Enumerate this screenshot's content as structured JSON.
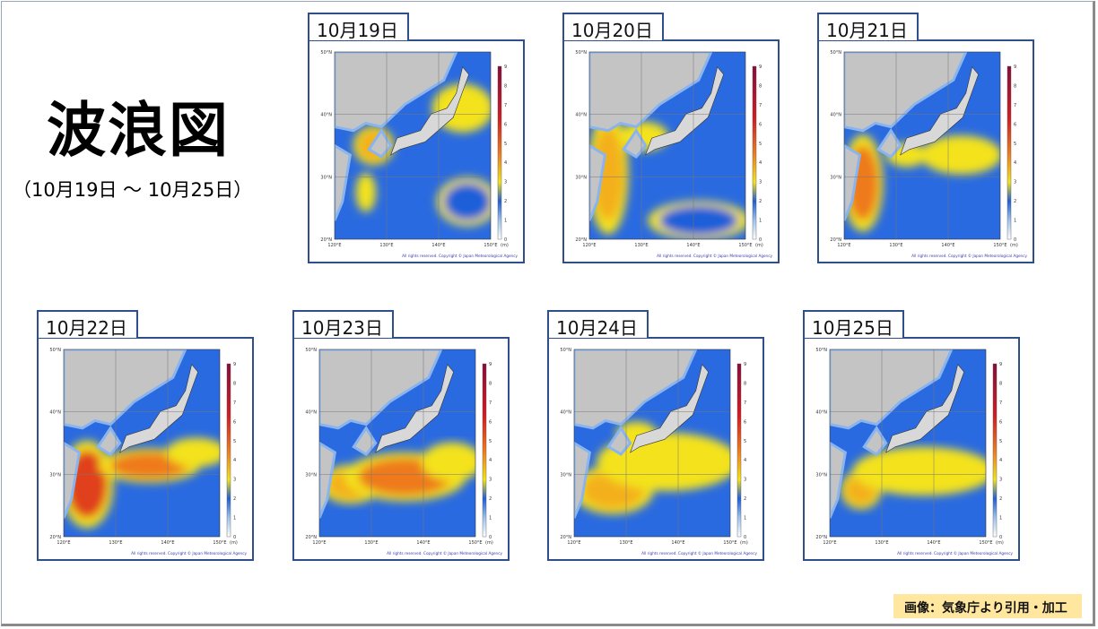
{
  "title": "波浪図",
  "date_range": "（10月19日 ～ 10月25日）",
  "panels": [
    {
      "date": "10月19日"
    },
    {
      "date": "10月20日"
    },
    {
      "date": "10月21日"
    },
    {
      "date": "10月22日"
    },
    {
      "date": "10月23日"
    },
    {
      "date": "10月24日"
    },
    {
      "date": "10月25日"
    }
  ],
  "map": {
    "lat_labels": [
      "50°N",
      "40°N",
      "30°N",
      "20°N"
    ],
    "lon_labels": [
      "120°E",
      "130°E",
      "140°E",
      "150°E"
    ],
    "colorbar_ticks": [
      "0",
      "1",
      "2",
      "3",
      "4",
      "5",
      "6",
      "7",
      "8",
      "9"
    ],
    "colorbar_unit": "(m)",
    "copyright": "All rights reserved. Copyright © Japan Meteorological Agency"
  },
  "credit": "画像：気象庁より引用・加工"
}
